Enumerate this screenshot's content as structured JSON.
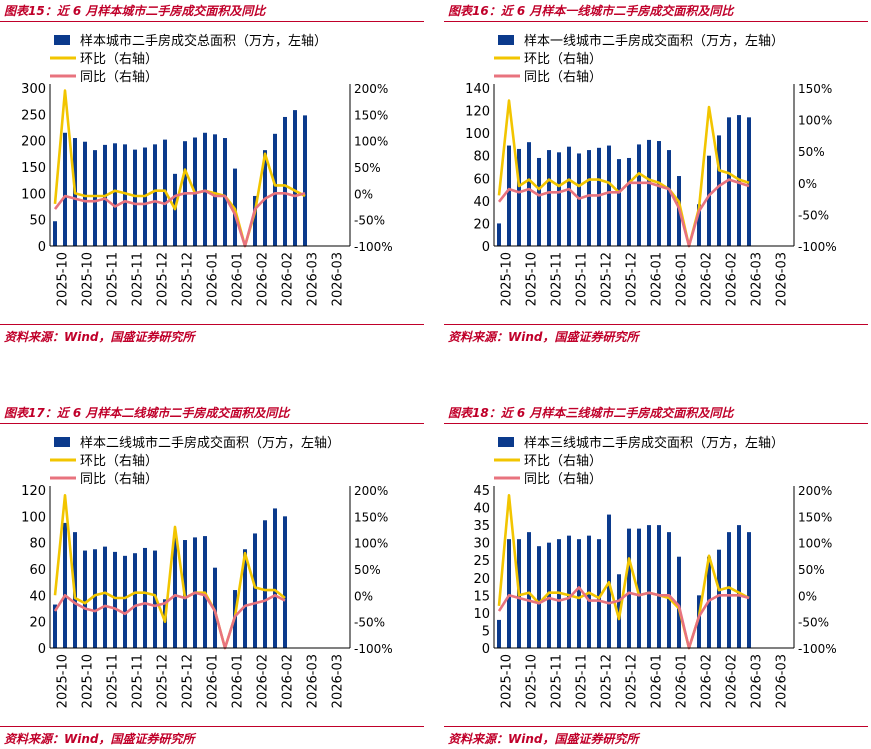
{
  "categories": [
    "2025-10",
    "2025-10",
    "2025-10",
    "2025-10",
    "2025-10",
    "2025-11",
    "2025-11",
    "2025-11",
    "2025-11",
    "2025-11",
    "2025-12",
    "2025-12",
    "2025-12",
    "2025-12",
    "2025-12",
    "2026-01",
    "2026-01",
    "2026-01",
    "2026-01",
    "2026-01",
    "2026-02",
    "2026-02",
    "2026-02",
    "2026-02",
    "2026-02",
    "2026-03",
    "2026-03",
    "2026-03",
    "2026-03",
    "2026-03"
  ],
  "xtick_labels": [
    "2025-10",
    "2025-10",
    "2025-11",
    "2025-11",
    "2025-12",
    "2025-12",
    "2026-01",
    "2026-01",
    "2026-02",
    "2026-02",
    "2026-03",
    "2026-03"
  ],
  "colors": {
    "bar": "#0b3a8c",
    "mom": "#f2c500",
    "yoy": "#e8737e",
    "accent": "#c0002a"
  },
  "chart_data": [
    {
      "type": "bar",
      "title": "图表15：近 6 月样本城市二手房成交面积及同比",
      "source": "资料来源：Wind，国盛证券研究所",
      "legend": [
        "样本城市二手房成交总面积（万方，左轴）",
        "环比（右轴）",
        "同比（右轴）"
      ],
      "ylim": [
        0,
        300
      ],
      "yticks": [
        0,
        50,
        100,
        150,
        200,
        250,
        300
      ],
      "y2lim": [
        -100,
        200
      ],
      "y2ticks": [
        "-100%",
        "-50%",
        "0%",
        "50%",
        "100%",
        "150%",
        "200%"
      ],
      "y2values": [
        -100,
        -50,
        0,
        50,
        100,
        150,
        200
      ],
      "series": [
        {
          "name": "样本城市二手房成交总面积（万方，左轴）",
          "values": [
            47,
            215,
            205,
            198,
            182,
            192,
            195,
            193,
            183,
            187,
            193,
            202,
            137,
            199,
            206,
            215,
            212,
            205,
            147,
            0,
            95,
            182,
            213,
            245,
            258,
            248,
            0,
            0,
            0,
            0
          ]
        },
        {
          "name": "环比（右轴）",
          "values": [
            -20,
            195,
            0,
            -5,
            -5,
            -5,
            5,
            0,
            -5,
            -5,
            5,
            5,
            -30,
            45,
            0,
            5,
            0,
            -5,
            -30,
            -100,
            -35,
            75,
            15,
            15,
            5,
            -5,
            0,
            0,
            0,
            0
          ]
        },
        {
          "name": "同比（右轴）",
          "values": [
            -30,
            -5,
            -10,
            -15,
            -15,
            -10,
            -25,
            -15,
            -20,
            -20,
            -15,
            -20,
            -5,
            0,
            0,
            5,
            -5,
            -5,
            -40,
            -100,
            -30,
            -10,
            0,
            0,
            -5,
            0,
            0,
            0,
            0,
            0
          ]
        }
      ]
    },
    {
      "type": "bar",
      "title": "图表16：近 6 月样本一线城市二手房成交面积及同比",
      "source": "资料来源：Wind，国盛证券研究所",
      "legend": [
        "样本一线城市二手房成交面积（万方，左轴）",
        "环比（右轴）",
        "同比（右轴）"
      ],
      "ylim": [
        0,
        140
      ],
      "yticks": [
        0,
        20,
        40,
        60,
        80,
        100,
        120,
        140
      ],
      "y2lim": [
        -100,
        150
      ],
      "y2ticks": [
        "-100%",
        "-50%",
        "0%",
        "50%",
        "100%",
        "150%"
      ],
      "y2values": [
        -100,
        -50,
        0,
        50,
        100,
        150
      ],
      "series": [
        {
          "name": "样本一线城市二手房成交面积（万方，左轴）",
          "values": [
            20,
            89,
            86,
            92,
            78,
            85,
            83,
            88,
            82,
            85,
            87,
            89,
            77,
            78,
            90,
            94,
            93,
            85,
            62,
            0,
            37,
            80,
            98,
            114,
            116,
            114,
            0,
            0,
            0,
            0
          ]
        },
        {
          "name": "环比（右轴）",
          "values": [
            -20,
            130,
            -5,
            5,
            -10,
            5,
            -5,
            5,
            -5,
            5,
            5,
            0,
            -15,
            0,
            15,
            5,
            0,
            -10,
            -30,
            -100,
            -40,
            120,
            20,
            15,
            5,
            0,
            0,
            0,
            0,
            0
          ]
        },
        {
          "name": "同比（右轴）",
          "values": [
            -30,
            -10,
            -15,
            -10,
            -20,
            -15,
            -15,
            -10,
            -25,
            -20,
            -20,
            -15,
            -15,
            0,
            0,
            0,
            -5,
            -10,
            -40,
            -100,
            -45,
            -20,
            -5,
            5,
            0,
            -5,
            0,
            0,
            0,
            0
          ]
        }
      ]
    },
    {
      "type": "bar",
      "title": "图表17：近 6 月样本二线城市二手房成交面积及同比",
      "source": "资料来源：Wind，国盛证券研究所",
      "legend": [
        "样本二线城市二手房成交面积（万方，左轴）",
        "环比（右轴）",
        "同比（右轴）"
      ],
      "ylim": [
        0,
        120
      ],
      "yticks": [
        0,
        20,
        40,
        60,
        80,
        100,
        120
      ],
      "y2lim": [
        -100,
        200
      ],
      "y2ticks": [
        "-100%",
        "-50%",
        "0%",
        "50%",
        "100%",
        "150%",
        "200%"
      ],
      "y2values": [
        -100,
        -50,
        0,
        50,
        100,
        150,
        200
      ],
      "series": [
        {
          "name": "样本二线城市二手房成交面积（万方，左轴）",
          "values": [
            33,
            95,
            88,
            74,
            75,
            77,
            73,
            70,
            72,
            76,
            74,
            37,
            85,
            82,
            84,
            85,
            61,
            0,
            44,
            75,
            87,
            97,
            106,
            100,
            0,
            0,
            0,
            0,
            0,
            0
          ]
        },
        {
          "name": "环比（右轴）",
          "values": [
            0,
            190,
            -5,
            -15,
            0,
            5,
            -5,
            -5,
            5,
            5,
            0,
            -50,
            130,
            -5,
            5,
            5,
            -30,
            -100,
            -40,
            80,
            15,
            10,
            10,
            -5,
            0,
            0,
            0,
            0,
            0,
            0
          ]
        },
        {
          "name": "同比（右轴）",
          "values": [
            -30,
            0,
            -15,
            -25,
            -30,
            -20,
            -25,
            -35,
            -20,
            -15,
            -20,
            -15,
            0,
            -5,
            5,
            0,
            -30,
            -100,
            -40,
            -20,
            -15,
            -10,
            0,
            -10,
            0,
            0,
            0,
            0,
            0,
            0
          ]
        }
      ]
    },
    {
      "type": "bar",
      "title": "图表18：近 6 月样本三线城市二手房成交面积及同比",
      "source": "资料来源：Wind，国盛证券研究所",
      "legend": [
        "样本三线城市二手房成交面积（万方，左轴）",
        "环比（右轴）",
        "同比（右轴）"
      ],
      "ylim": [
        0,
        45
      ],
      "yticks": [
        0,
        5,
        10,
        15,
        20,
        25,
        30,
        35,
        40,
        45
      ],
      "y2lim": [
        -100,
        200
      ],
      "y2ticks": [
        "-100%",
        "-50%",
        "0%",
        "50%",
        "100%",
        "150%",
        "200%"
      ],
      "y2values": [
        -100,
        -50,
        0,
        50,
        100,
        150,
        200
      ],
      "series": [
        {
          "name": "样本三线城市二手房成交面积（万方，左轴）",
          "values": [
            8,
            31,
            31,
            33,
            29,
            30,
            31,
            32,
            31,
            32,
            31,
            38,
            21,
            34,
            34,
            35,
            35,
            33,
            26,
            0,
            15,
            26,
            28,
            33,
            35,
            33,
            0,
            0,
            0,
            0
          ]
        },
        {
          "name": "环比（右轴）",
          "values": [
            -20,
            190,
            0,
            5,
            -15,
            5,
            5,
            0,
            -5,
            5,
            -5,
            25,
            -45,
            70,
            0,
            5,
            0,
            -5,
            -25,
            -100,
            -40,
            75,
            10,
            15,
            5,
            -5,
            0,
            0,
            0,
            0
          ]
        },
        {
          "name": "同比（右轴）",
          "values": [
            -30,
            0,
            -5,
            -10,
            -15,
            -5,
            -10,
            -5,
            15,
            -10,
            -10,
            -15,
            -10,
            5,
            0,
            5,
            0,
            0,
            -20,
            -100,
            -40,
            -10,
            0,
            0,
            0,
            -5,
            0,
            0,
            0,
            0
          ]
        }
      ]
    }
  ]
}
